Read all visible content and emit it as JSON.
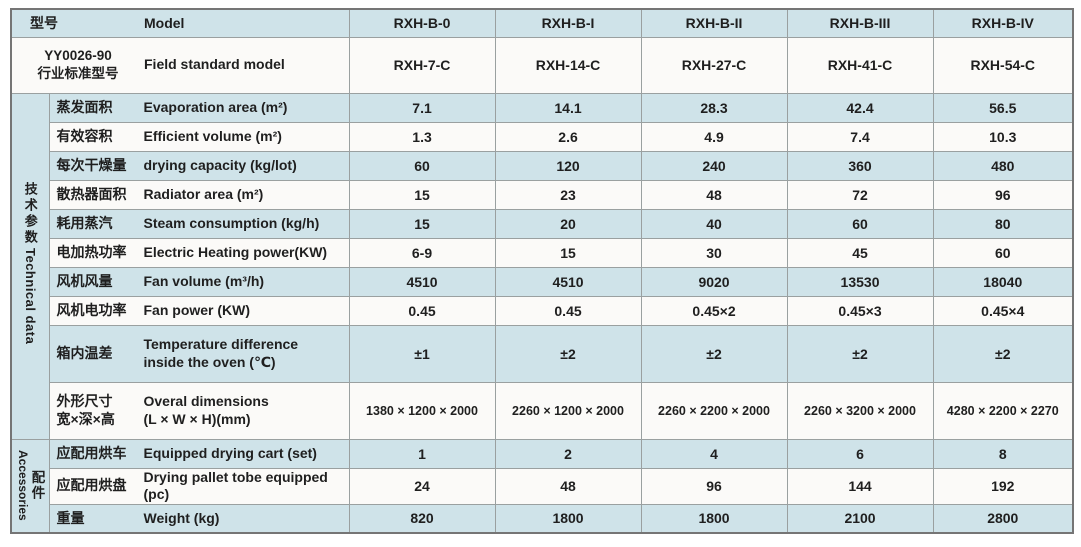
{
  "colors": {
    "row_blue": "#cfe3e9",
    "row_white": "#fbfaf8",
    "border": "#9aa0a0",
    "text": "#1f1f1f"
  },
  "table": {
    "header": {
      "model_label_zh": "型号",
      "model_label_en": "Model",
      "models": [
        "RXH-B-0",
        "RXH-B-I",
        "RXH-B-II",
        "RXH-B-III",
        "RXH-B-IV"
      ],
      "standard_label_zh": "YY0026-90\n行业标准型号",
      "standard_label_en": "Field standard model",
      "standard_models": [
        "RXH-7-C",
        "RXH-14-C",
        "RXH-27-C",
        "RXH-41-C",
        "RXH-54-C"
      ]
    },
    "sections": [
      {
        "group_zh": "技术参数",
        "group_en": "Technical data",
        "rows": [
          {
            "label_zh": "蒸发面积",
            "label_en": "Evaporation area (m²)",
            "values": [
              "7.1",
              "14.1",
              "28.3",
              "42.4",
              "56.5"
            ]
          },
          {
            "label_zh": "有效容积",
            "label_en": "Efficient volume (m²)",
            "values": [
              "1.3",
              "2.6",
              "4.9",
              "7.4",
              "10.3"
            ]
          },
          {
            "label_zh": "每次干燥量",
            "label_en": "drying capacity (kg/lot)",
            "values": [
              "60",
              "120",
              "240",
              "360",
              "480"
            ]
          },
          {
            "label_zh": "散热器面积",
            "label_en": "Radiator area (m²)",
            "values": [
              "15",
              "23",
              "48",
              "72",
              "96"
            ]
          },
          {
            "label_zh": "耗用蒸汽",
            "label_en": "Steam consumption (kg/h)",
            "values": [
              "15",
              "20",
              "40",
              "60",
              "80"
            ]
          },
          {
            "label_zh": "电加热功率",
            "label_en": "Electric Heating power(KW)",
            "values": [
              "6-9",
              "15",
              "30",
              "45",
              "60"
            ]
          },
          {
            "label_zh": "风机风量",
            "label_en": "Fan volume (m³/h)",
            "values": [
              "4510",
              "4510",
              "9020",
              "13530",
              "18040"
            ]
          },
          {
            "label_zh": "风机电功率",
            "label_en": "Fan power (KW)",
            "values": [
              "0.45",
              "0.45",
              "0.45×2",
              "0.45×3",
              "0.45×4"
            ]
          },
          {
            "label_zh": "箱内温差",
            "label_en": "Temperature difference\ninside the oven (℃)",
            "values": [
              "±1",
              "±2",
              "±2",
              "±2",
              "±2"
            ]
          },
          {
            "label_zh": "外形尺寸\n宽×深×高",
            "label_en": "Overal dimensions\n(L × W × H)(mm)",
            "values": [
              "1380 × 1200 × 2000",
              "2260 × 1200 × 2000",
              "2260 × 2200 × 2000",
              "2260 × 3200 × 2000",
              "4280 × 2200 × 2270"
            ]
          }
        ]
      },
      {
        "group_zh": "配件",
        "group_en": "Accessories",
        "rows": [
          {
            "label_zh": "应配用烘车",
            "label_en": "Equipped drying cart (set)",
            "values": [
              "1",
              "2",
              "4",
              "6",
              "8"
            ]
          },
          {
            "label_zh": "应配用烘盘",
            "label_en": "Drying pallet tobe equipped (pc)",
            "values": [
              "24",
              "48",
              "96",
              "144",
              "192"
            ]
          },
          {
            "label_zh": "重量",
            "label_en": "Weight (kg)",
            "values": [
              "820",
              "1800",
              "1800",
              "2100",
              "2800"
            ]
          }
        ]
      }
    ]
  }
}
